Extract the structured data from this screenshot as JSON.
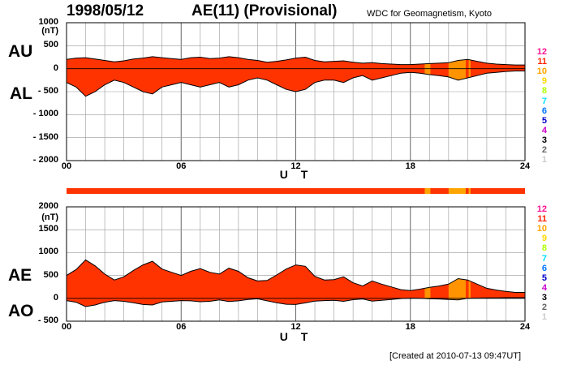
{
  "header": {
    "date": "1998/05/12",
    "title": "AE(11) (Provisional)",
    "source": "WDC for Geomagnetism, Kyoto"
  },
  "footer": {
    "created": "[Created at 2010-07-13 09:47UT]"
  },
  "colors": {
    "red": "#ff3300",
    "orange": "#ffa500",
    "grid": "#999999",
    "axis": "#000000"
  },
  "legend_levels": [
    {
      "label": "12",
      "color": "#ff1493"
    },
    {
      "label": "11",
      "color": "#ff2200"
    },
    {
      "label": "10",
      "color": "#ffa500"
    },
    {
      "label": "9",
      "color": "#ffd700"
    },
    {
      "label": "8",
      "color": "#b0ff00"
    },
    {
      "label": "7",
      "color": "#00e0ff"
    },
    {
      "label": "6",
      "color": "#0077ff"
    },
    {
      "label": "5",
      "color": "#0000cc"
    },
    {
      "label": "4",
      "color": "#cc00cc"
    },
    {
      "label": "3",
      "color": "#000000"
    },
    {
      "label": "2",
      "color": "#666666"
    },
    {
      "label": "1",
      "color": "#cccccc"
    }
  ],
  "chart_data": [
    {
      "type": "area",
      "panel": "AU/AL",
      "series": [
        {
          "name": "AU",
          "label": "AU"
        },
        {
          "name": "AL",
          "label": "AL"
        }
      ],
      "ylabel_unit": "(nT)",
      "xlabel": "U T",
      "ylim": [
        -2000,
        1000
      ],
      "yticks": [
        1000,
        500,
        0,
        -500,
        -1000,
        -1500,
        -2000
      ],
      "ytick_labels": [
        "1000",
        "500",
        "0",
        "- 500",
        "- 1000",
        "- 1500",
        "- 2000"
      ],
      "xlim": [
        0,
        24
      ],
      "xticks": [
        0,
        6,
        12,
        18,
        24
      ],
      "xtick_labels": [
        "00",
        "06",
        "12",
        "18",
        "24"
      ],
      "x_hours": [
        0,
        0.5,
        1,
        1.5,
        2,
        2.5,
        3,
        3.5,
        4,
        4.5,
        5,
        5.5,
        6,
        6.5,
        7,
        7.5,
        8,
        8.5,
        9,
        9.5,
        10,
        10.5,
        11,
        11.5,
        12,
        12.5,
        13,
        13.5,
        14,
        14.5,
        15,
        15.5,
        16,
        16.5,
        17,
        17.5,
        18,
        18.5,
        19,
        19.5,
        20,
        20.5,
        21,
        21.5,
        22,
        22.5,
        23,
        23.5,
        24
      ],
      "AU": [
        200,
        230,
        240,
        210,
        180,
        150,
        170,
        210,
        230,
        260,
        240,
        220,
        200,
        240,
        250,
        220,
        230,
        260,
        240,
        200,
        180,
        140,
        160,
        190,
        230,
        250,
        180,
        150,
        160,
        170,
        140,
        120,
        130,
        110,
        100,
        90,
        90,
        100,
        110,
        120,
        130,
        180,
        200,
        160,
        120,
        100,
        90,
        80,
        80
      ],
      "AL": [
        -300,
        -400,
        -600,
        -500,
        -350,
        -250,
        -300,
        -400,
        -500,
        -550,
        -400,
        -350,
        -300,
        -350,
        -400,
        -350,
        -300,
        -400,
        -350,
        -250,
        -200,
        -250,
        -350,
        -450,
        -500,
        -450,
        -300,
        -250,
        -250,
        -300,
        -200,
        -150,
        -250,
        -200,
        -150,
        -100,
        -80,
        -100,
        -130,
        -150,
        -180,
        -250,
        -200,
        -150,
        -100,
        -80,
        -60,
        -50,
        -50
      ]
    },
    {
      "type": "area",
      "panel": "AE/AO",
      "series": [
        {
          "name": "AE",
          "label": "AE"
        },
        {
          "name": "AO",
          "label": "AO"
        }
      ],
      "ylabel_unit": "(nT)",
      "xlabel": "U T",
      "ylim": [
        -500,
        2000
      ],
      "yticks": [
        2000,
        1500,
        1000,
        500,
        0,
        -500
      ],
      "ytick_labels": [
        "2000",
        "1500",
        "1000",
        "500",
        "0",
        "- 500"
      ],
      "xlim": [
        0,
        24
      ],
      "xticks": [
        0,
        6,
        12,
        18,
        24
      ],
      "xtick_labels": [
        "00",
        "06",
        "12",
        "18",
        "24"
      ],
      "x_hours": [
        0,
        0.5,
        1,
        1.5,
        2,
        2.5,
        3,
        3.5,
        4,
        4.5,
        5,
        5.5,
        6,
        6.5,
        7,
        7.5,
        8,
        8.5,
        9,
        9.5,
        10,
        10.5,
        11,
        11.5,
        12,
        12.5,
        13,
        13.5,
        14,
        14.5,
        15,
        15.5,
        16,
        16.5,
        17,
        17.5,
        18,
        18.5,
        19,
        19.5,
        20,
        20.5,
        21,
        21.5,
        22,
        22.5,
        23,
        23.5,
        24
      ],
      "AE": [
        500,
        630,
        840,
        710,
        530,
        400,
        470,
        610,
        730,
        810,
        640,
        570,
        500,
        590,
        650,
        570,
        530,
        660,
        590,
        450,
        380,
        390,
        510,
        640,
        730,
        700,
        480,
        400,
        410,
        470,
        340,
        270,
        380,
        310,
        250,
        190,
        170,
        200,
        240,
        270,
        310,
        430,
        400,
        310,
        220,
        180,
        150,
        130,
        130
      ],
      "AO": [
        -50,
        -85,
        -180,
        -145,
        -85,
        -50,
        -65,
        -95,
        -135,
        -145,
        -80,
        -65,
        -50,
        -55,
        -75,
        -65,
        -35,
        -70,
        -55,
        -25,
        -10,
        -55,
        -95,
        -130,
        -135,
        -100,
        -60,
        -50,
        -45,
        -65,
        -30,
        -15,
        -60,
        -45,
        -25,
        -5,
        5,
        0,
        -10,
        -15,
        -25,
        -35,
        0,
        5,
        10,
        10,
        15,
        15,
        15
      ]
    }
  ],
  "quality_bar": {
    "segments": [
      {
        "from": 0,
        "to": 18.75,
        "level": "11"
      },
      {
        "from": 18.75,
        "to": 19.05,
        "level": "10"
      },
      {
        "from": 19.05,
        "to": 20.0,
        "level": "11"
      },
      {
        "from": 20.0,
        "to": 20.9,
        "level": "10"
      },
      {
        "from": 20.9,
        "to": 21.05,
        "level": "11"
      },
      {
        "from": 21.05,
        "to": 21.15,
        "level": "10"
      },
      {
        "from": 21.15,
        "to": 24,
        "level": "11"
      }
    ]
  }
}
